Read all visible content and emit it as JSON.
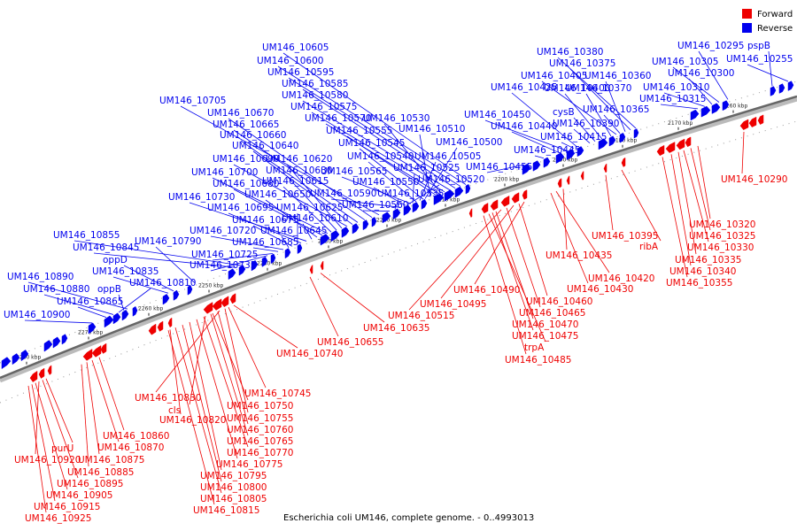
{
  "colors": {
    "forward": "#ee0000",
    "reverse": "#0000ee",
    "backbone": "#555555"
  },
  "legend": [
    {
      "label": "Forward",
      "color": "#ee0000"
    },
    {
      "label": "Reverse",
      "color": "#0000ee"
    }
  ],
  "caption": "Escherichia coli UM146, complete genome. - 0..4993013",
  "ticks": [
    "2160 kbp",
    "2170 kbp",
    "2180 kbp",
    "2190 kbp",
    "2200 kbp",
    "2210 kbp",
    "2220 kbp",
    "2230 kbp",
    "2240 kbp",
    "2250 kbp",
    "2260 kbp",
    "2270 kbp",
    "2280 kbp"
  ],
  "reverse_labels": [
    "pspB",
    "UM146_10255",
    "UM146_10295",
    "UM146_10305",
    "UM146_10300",
    "UM146_10310",
    "UM146_10315",
    "UM146_10380",
    "UM146_10375",
    "UM146_10405",
    "UM146_10360",
    "UM146_10425",
    "UM146_10400",
    "UM146_10370",
    "UM146_10365",
    "cysB",
    "UM146_10390",
    "UM146_10415",
    "UM146_10450",
    "UM146_10440",
    "UM146_10445",
    "UM146_10455",
    "UM146_10605",
    "UM146_10600",
    "UM146_10595",
    "UM146_10585",
    "UM146_10580",
    "UM146_10575",
    "UM146_10570",
    "UM146_10530",
    "UM146_10555",
    "UM146_10510",
    "UM146_10545",
    "UM146_10500",
    "UM146_10540",
    "UM146_10505",
    "UM146_10565",
    "UM146_10525",
    "UM146_10550",
    "UM146_10520",
    "UM146_10590",
    "UM146_10535",
    "UM146_10560",
    "UM146_10705",
    "UM146_10670",
    "UM146_10665",
    "UM146_10660",
    "UM146_10640",
    "UM146_10690",
    "UM146_10620",
    "UM146_10630",
    "UM146_10615",
    "UM146_10700",
    "UM146_10680",
    "UM146_10650",
    "UM146_10610",
    "UM146_10730",
    "UM146_10695",
    "UM146_10625",
    "UM146_10675",
    "UM146_10645",
    "UM146_10720",
    "UM146_10685",
    "UM146_10725",
    "UM146_10735",
    "UM146_10855",
    "UM146_10845",
    "UM146_10790",
    "oppD",
    "UM146_10835",
    "UM146_10890",
    "oppB",
    "UM146_10810",
    "UM146_10880",
    "UM146_10865",
    "UM146_10900"
  ],
  "forward_labels": [
    "UM146_10290",
    "UM146_10320",
    "UM146_10325",
    "UM146_10330",
    "UM146_10335",
    "UM146_10340",
    "UM146_10355",
    "UM146_10395",
    "ribA",
    "UM146_10435",
    "UM146_10420",
    "UM146_10430",
    "UM146_10490",
    "UM146_10460",
    "UM146_10495",
    "UM146_10465",
    "UM146_10515",
    "UM146_10470",
    "UM146_10475",
    "trpA",
    "UM146_10485",
    "UM146_10635",
    "UM146_10655",
    "UM146_10740",
    "UM146_10745",
    "UM146_10830",
    "UM146_10750",
    "cls",
    "UM146_10755",
    "UM146_10820",
    "UM146_10760",
    "UM146_10765",
    "UM146_10860",
    "UM146_10870",
    "UM146_10770",
    "purU",
    "UM146_10875",
    "UM146_10775",
    "UM146_10920",
    "UM146_10885",
    "UM146_10795",
    "UM146_10895",
    "UM146_10800",
    "UM146_10905",
    "UM146_10805",
    "UM146_10915",
    "UM146_10815",
    "UM146_10925"
  ]
}
